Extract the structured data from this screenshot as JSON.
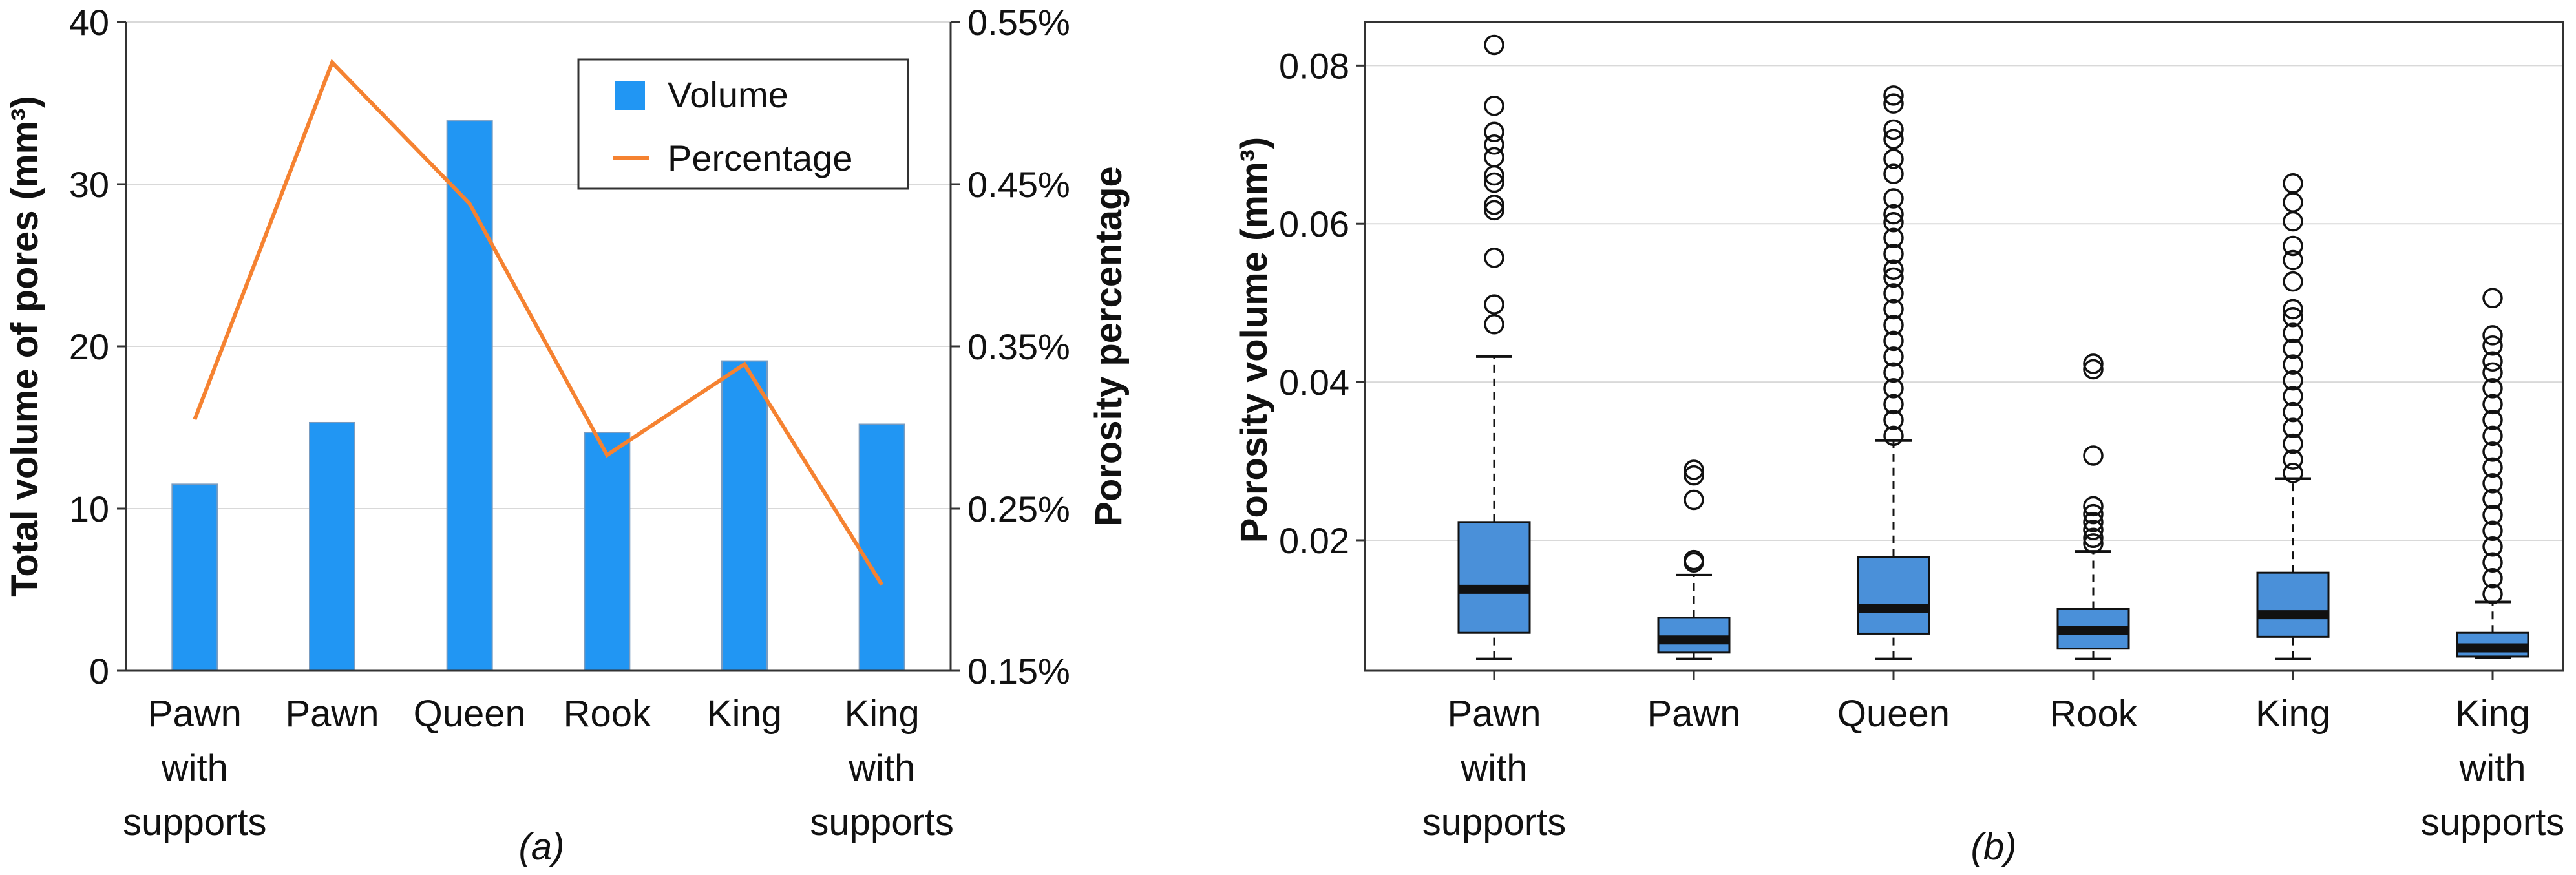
{
  "chart_data": [
    {
      "type": "bar",
      "subtitle": "(a)",
      "categories": [
        [
          "Pawn",
          "with",
          "supports"
        ],
        [
          "Pawn"
        ],
        [
          "Queen"
        ],
        [
          "Rook"
        ],
        [
          "King"
        ],
        [
          "King",
          "with",
          "supports"
        ]
      ],
      "ylabel": "Total volume of pores (mm³)",
      "y2label": "Porosity percentage",
      "ylim": [
        0,
        40
      ],
      "yticks": [
        0,
        10,
        20,
        30,
        40
      ],
      "y2lim": [
        0.15,
        0.55
      ],
      "y2ticks": [
        "0.15%",
        "0.25%",
        "0.35%",
        "0.45%",
        "0.55%"
      ],
      "y2tickvalues": [
        0.15,
        0.25,
        0.35,
        0.45,
        0.55
      ],
      "series": [
        {
          "name": "Volume",
          "kind": "bar",
          "color": "#2196f3",
          "values": [
            11.5,
            15.3,
            33.9,
            14.7,
            19.1,
            15.2
          ]
        },
        {
          "name": "Percentage",
          "kind": "line",
          "color": "#f58231",
          "values": [
            0.305,
            0.525,
            0.438,
            0.283,
            0.339,
            0.203
          ]
        }
      ],
      "legend": {
        "position": "top-right",
        "items": [
          "Volume",
          "Percentage"
        ]
      },
      "grid": true
    },
    {
      "type": "box",
      "subtitle": "(b)",
      "categories": [
        [
          "Pawn",
          "with",
          "supports"
        ],
        [
          "Pawn"
        ],
        [
          "Queen"
        ],
        [
          "Rook"
        ],
        [
          "King"
        ],
        [
          "King",
          "with",
          "supports"
        ]
      ],
      "ylabel": "Porosity volume (mm³)",
      "ylim": [
        0.0035,
        0.0855
      ],
      "yticks": [
        "0.02",
        "0.04",
        "0.06",
        "0.08"
      ],
      "ytickvalues": [
        0.02,
        0.04,
        0.06,
        0.08
      ],
      "color": "#4a90d9",
      "grid": true,
      "boxes": [
        {
          "min": 0.005,
          "q1": 0.0083,
          "median": 0.0138,
          "q3": 0.0223,
          "whisker_high": 0.0432,
          "outliers": [
            0.0826,
            0.0749,
            0.0716,
            0.07,
            0.0684,
            0.0661,
            0.0652,
            0.0624,
            0.0617,
            0.0557,
            0.0498,
            0.0473
          ]
        },
        {
          "min": 0.005,
          "q1": 0.0058,
          "median": 0.0074,
          "q3": 0.0102,
          "whisker_high": 0.0156,
          "outliers": [
            0.0289,
            0.0282,
            0.0251,
            0.0175,
            0.0172
          ]
        },
        {
          "min": 0.005,
          "q1": 0.0082,
          "median": 0.0114,
          "q3": 0.0179,
          "whisker_high": 0.0326,
          "outliers": [
            0.0762,
            0.0752,
            0.0719,
            0.0707,
            0.0682,
            0.0663,
            0.0632,
            0.0612,
            0.0602,
            0.0582,
            0.0562,
            0.0542,
            0.0532,
            0.0512,
            0.0492,
            0.0472,
            0.0452,
            0.0432,
            0.0412,
            0.0392,
            0.0372,
            0.0352,
            0.0332
          ]
        },
        {
          "min": 0.005,
          "q1": 0.0063,
          "median": 0.0086,
          "q3": 0.0113,
          "whisker_high": 0.0186,
          "outliers": [
            0.0423,
            0.0416,
            0.0307,
            0.0243,
            0.0233,
            0.0223,
            0.0213,
            0.0203,
            0.0196
          ]
        },
        {
          "min": 0.005,
          "q1": 0.0078,
          "median": 0.0106,
          "q3": 0.0159,
          "whisker_high": 0.0278,
          "outliers": [
            0.0651,
            0.0627,
            0.0603,
            0.0572,
            0.0554,
            0.0527,
            0.0492,
            0.0482,
            0.0462,
            0.0442,
            0.0422,
            0.0402,
            0.0382,
            0.0362,
            0.0342,
            0.0322,
            0.0302,
            0.0285
          ]
        },
        {
          "min": 0.0052,
          "q1": 0.0053,
          "median": 0.0064,
          "q3": 0.0083,
          "whisker_high": 0.0122,
          "outliers": [
            0.0506,
            0.0459,
            0.0446,
            0.0426,
            0.0412,
            0.0392,
            0.0372,
            0.0352,
            0.0332,
            0.0312,
            0.0292,
            0.0272,
            0.0252,
            0.0232,
            0.0212,
            0.0192,
            0.0172,
            0.0152,
            0.0132
          ]
        }
      ]
    }
  ]
}
